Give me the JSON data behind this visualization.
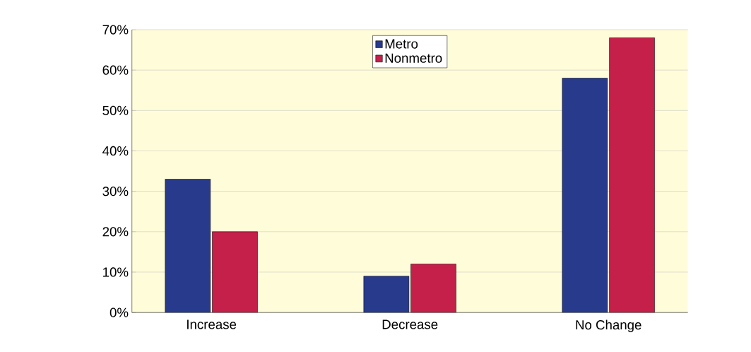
{
  "chart_data": {
    "type": "bar",
    "categories": [
      "Increase",
      "Decrease",
      "No Change"
    ],
    "series": [
      {
        "name": "Metro",
        "color": "#283a8c",
        "values": [
          33,
          9,
          58
        ]
      },
      {
        "name": "Nonmetro",
        "color": "#c4204a",
        "values": [
          20,
          12,
          68
        ]
      }
    ],
    "ylim": [
      0,
      70
    ],
    "yticks": [
      {
        "value": 0,
        "label": "0%"
      },
      {
        "value": 10,
        "label": "10%"
      },
      {
        "value": 20,
        "label": "20%"
      },
      {
        "value": 30,
        "label": "30%"
      },
      {
        "value": 40,
        "label": "40%"
      },
      {
        "value": 50,
        "label": "50%"
      },
      {
        "value": 60,
        "label": "60%"
      },
      {
        "value": 70,
        "label": "70%"
      }
    ],
    "grid": "y",
    "legend": "top"
  }
}
